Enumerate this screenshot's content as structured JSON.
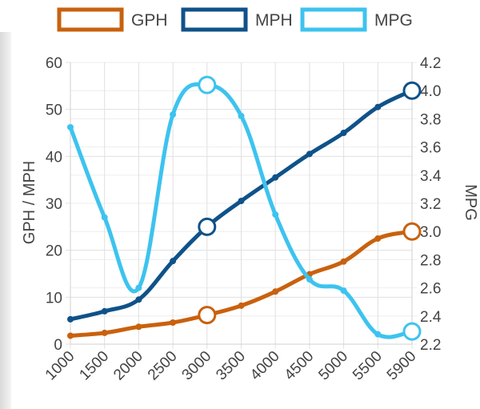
{
  "chart_data": {
    "type": "line",
    "x": [
      1000,
      1500,
      2000,
      2500,
      3000,
      3500,
      4000,
      4500,
      5000,
      5500,
      5900
    ],
    "xtick_labels": [
      "1000",
      "1500",
      "2000",
      "2500",
      "3000",
      "3500",
      "4000",
      "4500",
      "5000",
      "5500",
      "5900"
    ],
    "ylabel": "GPH / MPH",
    "y2label": "MPG",
    "ylim": [
      0,
      60
    ],
    "y2lim": [
      2.2,
      4.2
    ],
    "yticks": [
      "0",
      "10",
      "20",
      "30",
      "40",
      "50",
      "60"
    ],
    "y2ticks": [
      "2.2",
      "2.4",
      "2.6",
      "2.8",
      "3.0",
      "3.2",
      "3.4",
      "3.6",
      "3.8",
      "4.0",
      "4.2"
    ],
    "grid": true,
    "legend_position": "top",
    "series": [
      {
        "name": "GPH",
        "axis": "left",
        "color": "#c9610d",
        "values": [
          1.8,
          2.4,
          3.7,
          4.6,
          6.2,
          8.2,
          11.2,
          14.9,
          17.6,
          22.5,
          24.0
        ],
        "highlight_indices": [
          4,
          10
        ]
      },
      {
        "name": "MPH",
        "axis": "left",
        "color": "#0f5289",
        "values": [
          5.3,
          7.0,
          9.5,
          17.7,
          25.0,
          30.5,
          35.5,
          40.5,
          45.0,
          50.5,
          54.0
        ],
        "highlight_indices": [
          4,
          10
        ]
      },
      {
        "name": "MPG",
        "axis": "right",
        "color": "#3dc3ef",
        "values": [
          3.74,
          3.1,
          2.6,
          3.83,
          4.04,
          3.82,
          3.12,
          2.66,
          2.58,
          2.27,
          2.29
        ],
        "highlight_indices": [
          4,
          10
        ]
      }
    ]
  }
}
